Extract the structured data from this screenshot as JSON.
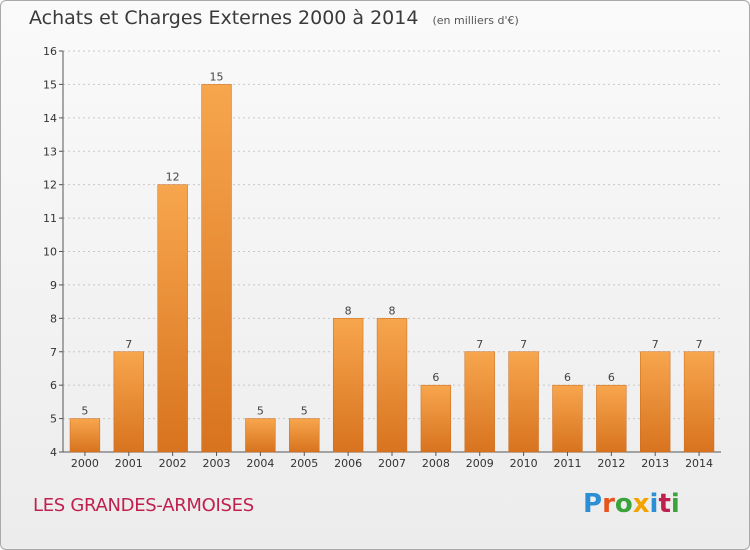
{
  "header": {
    "title": "Achats et Charges Externes 2000 à 2014",
    "unit": "(en milliers d'€)"
  },
  "footer": {
    "commune": "LES GRANDES-ARMOISES",
    "logo": "Proxiti",
    "logo_colors": [
      "#2c8fd6",
      "#e8551c",
      "#3aa33a",
      "#f2a300",
      "#2c8fd6",
      "#c0204e",
      "#3aa33a"
    ]
  },
  "colors": {
    "bar_top": "#f7a64e",
    "bar_bottom": "#d8731f",
    "axis": "#555555",
    "grid": "#c8c8c8"
  },
  "chart_data": {
    "type": "bar",
    "title": "Achats et Charges Externes 2000 à 2014",
    "xlabel": "",
    "ylabel": "",
    "ylim": [
      4,
      16
    ],
    "yticks": [
      4,
      5,
      6,
      7,
      8,
      9,
      10,
      11,
      12,
      13,
      14,
      15,
      16
    ],
    "grid": true,
    "categories": [
      "2000",
      "2001",
      "2002",
      "2003",
      "2004",
      "2005",
      "2006",
      "2007",
      "2008",
      "2009",
      "2010",
      "2011",
      "2012",
      "2013",
      "2014"
    ],
    "values": [
      5,
      7,
      12,
      15,
      5,
      5,
      8,
      8,
      6,
      7,
      7,
      6,
      6,
      7,
      7
    ]
  }
}
